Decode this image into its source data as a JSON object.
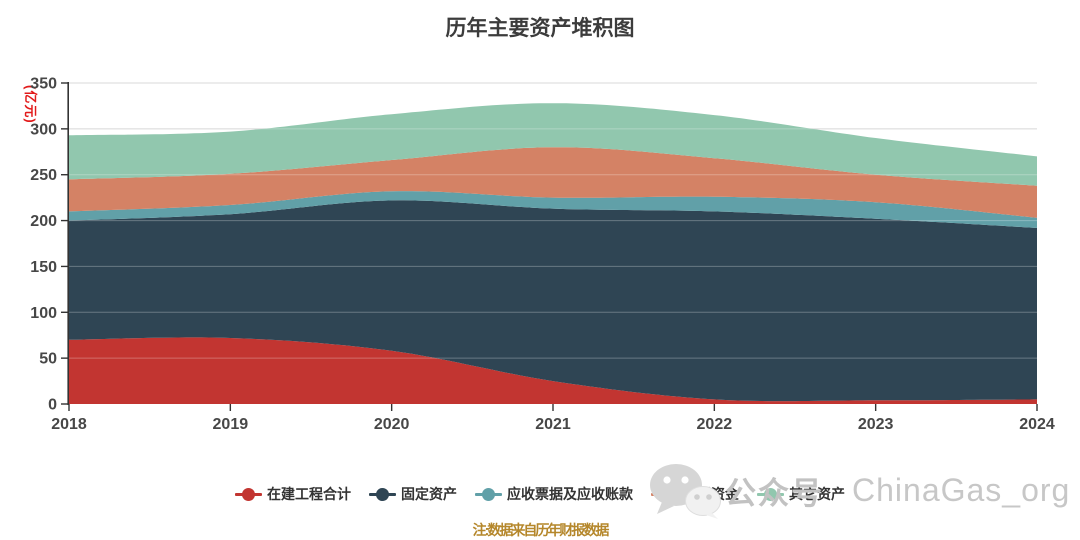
{
  "title": "历年主要资产堆积图",
  "y_axis_label": "(亿元)",
  "footnote": "注:数据来自历年财报数据",
  "watermark": {
    "icon": "wechat-icon",
    "wechat_label": "公众号",
    "account": "ChinaGas_org"
  },
  "colors": {
    "y_axis_label": "#e21a1a",
    "footnote": "#b5872b",
    "watermark_text": "#c4c4c4",
    "axis": "#333333",
    "gridline": "#cccccc",
    "tick_label": "#474747"
  },
  "chart_data": {
    "type": "area",
    "stacked": true,
    "smooth": true,
    "title": "历年主要资产堆积图",
    "ylabel": "(亿元)",
    "xlabel": "",
    "categories": [
      "2018",
      "2019",
      "2020",
      "2021",
      "2022",
      "2023",
      "2024"
    ],
    "series": [
      {
        "name": "在建工程合计",
        "color": "#c23531",
        "values": [
          70,
          72,
          58,
          25,
          5,
          4,
          5
        ]
      },
      {
        "name": "固定资产",
        "color": "#2f4554",
        "values": [
          130,
          135,
          164,
          188,
          205,
          198,
          187
        ]
      },
      {
        "name": "应收票据及应收账款",
        "color": "#61a0a8",
        "values": [
          10,
          10,
          10,
          12,
          16,
          18,
          11
        ]
      },
      {
        "name": "货币资金",
        "color": "#d48265",
        "values": [
          35,
          34,
          34,
          55,
          42,
          30,
          35
        ]
      },
      {
        "name": "其它资产",
        "color": "#91c7ae",
        "values": [
          48,
          46,
          50,
          48,
          47,
          40,
          32
        ]
      }
    ],
    "stack_totals": [
      293,
      297,
      316,
      328,
      315,
      290,
      270
    ],
    "ylim": [
      0,
      350
    ],
    "ytick_step": 50,
    "grid": true,
    "legend_position": "bottom"
  }
}
